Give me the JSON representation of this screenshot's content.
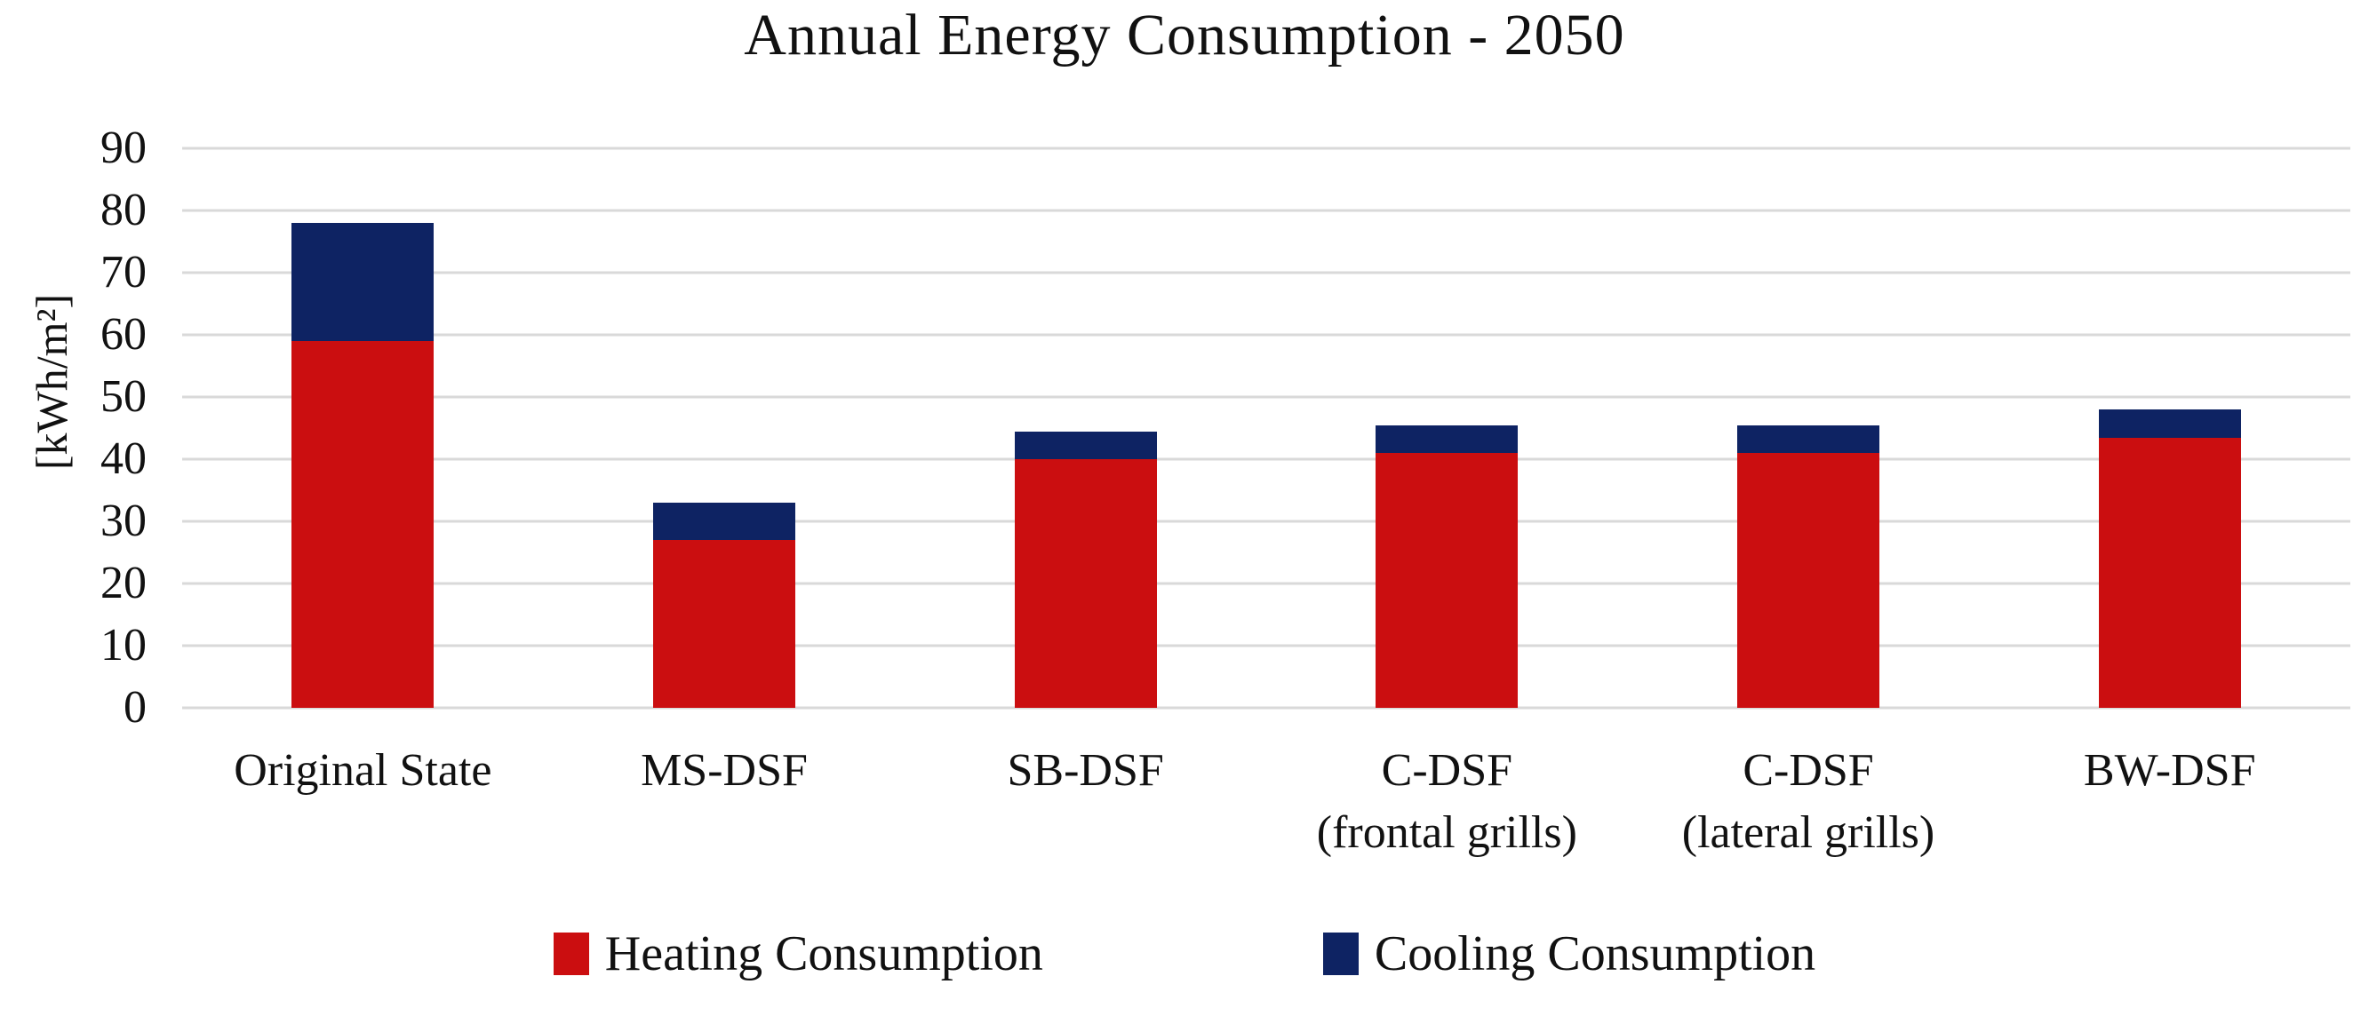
{
  "figure": {
    "background": "#ffffff",
    "text_color": "#111111"
  },
  "chart_data": {
    "type": "bar",
    "stacked": true,
    "title": "Annual Energy Consumption - 2050",
    "xlabel": "",
    "ylabel": "[kWh/m²]",
    "ylim": [
      0,
      90
    ],
    "yticks": [
      0,
      10,
      20,
      30,
      40,
      50,
      60,
      70,
      80,
      90
    ],
    "grid": true,
    "gridline_color": "#d9d9d9",
    "legend_position": "bottom",
    "categories": [
      "Original State",
      "MS-DSF",
      "SB-DSF",
      "C-DSF (frontal grills)",
      "C-DSF (lateral grills)",
      "BW-DSF"
    ],
    "category_lines": [
      [
        "Original State"
      ],
      [
        "MS-DSF"
      ],
      [
        "SB-DSF"
      ],
      [
        "C-DSF",
        "(frontal grills)"
      ],
      [
        "C-DSF",
        "(lateral grills)"
      ],
      [
        "BW-DSF"
      ]
    ],
    "series": [
      {
        "name": "Heating Consumption",
        "color": "#cb0e10",
        "values": [
          59,
          27,
          40,
          41,
          41,
          43.5
        ]
      },
      {
        "name": "Cooling Consumption",
        "color": "#0e2363",
        "values": [
          19,
          6,
          4.5,
          4.5,
          4.5,
          4.5
        ]
      }
    ],
    "totals": [
      78,
      33,
      44.5,
      45.5,
      45.5,
      48
    ]
  }
}
